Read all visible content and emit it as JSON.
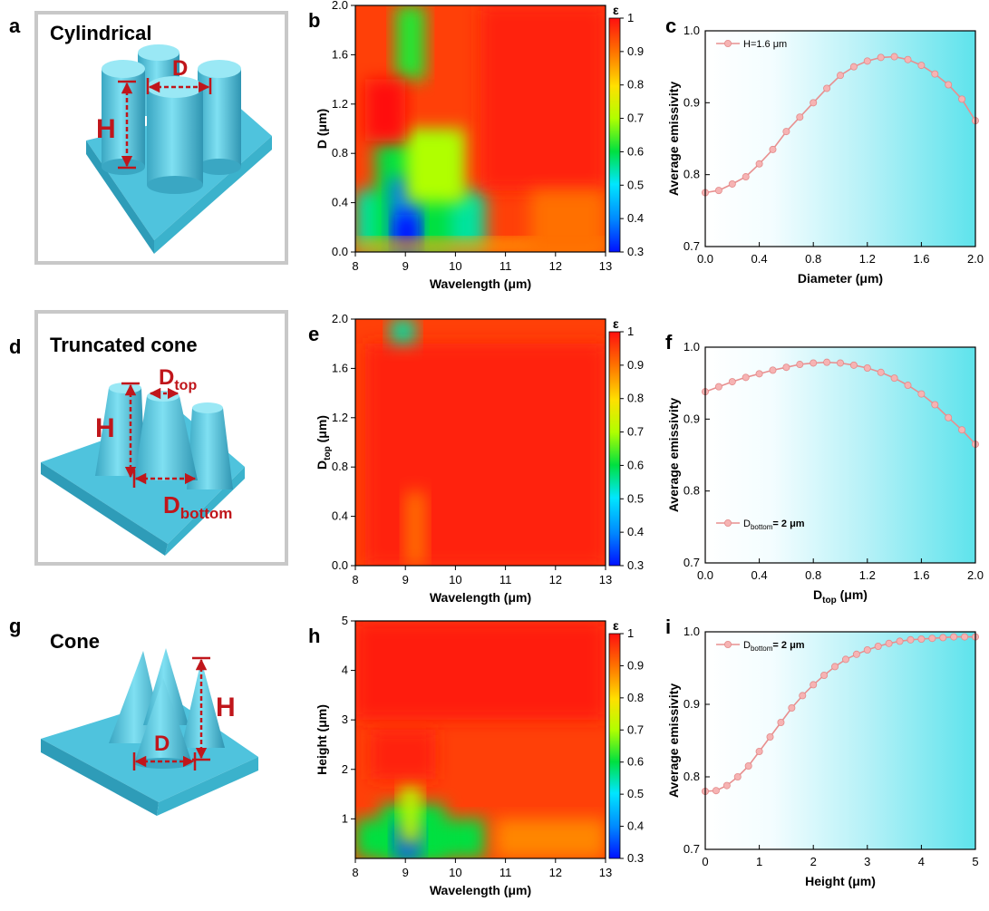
{
  "colors": {
    "accent": "#c0161b",
    "structure": "#4fc3dd",
    "frame": "#c8c8c8",
    "marker": "#f4a7a7",
    "line": "#e88f8f"
  },
  "panels": {
    "a": {
      "letter": "a",
      "title": "Cylindrical",
      "labels": {
        "D": "D",
        "H": "H"
      }
    },
    "d": {
      "letter": "d",
      "title": "Truncated cone",
      "labels": {
        "Dtop_base": "D",
        "Dtop_sub": "top",
        "H": "H",
        "Dbottom_base": "D",
        "Dbottom_sub": "bottom"
      }
    },
    "g": {
      "letter": "g",
      "title": "Cone",
      "labels": {
        "D": "D",
        "H": "H"
      }
    }
  },
  "chart_data": [
    {
      "panel": "b",
      "type": "heatmap",
      "xlabel": "Wavelength (μm)",
      "ylabel_base": "D",
      "ylabel_sub": "",
      "ylabel_tail": " (μm)",
      "xlim": [
        8,
        13
      ],
      "ylim": [
        0,
        2.0
      ],
      "xticks": [
        "8",
        "9",
        "10",
        "11",
        "12",
        "13"
      ],
      "yticks": [
        "0.0",
        "0.4",
        "0.8",
        "1.2",
        "1.6",
        "2.0"
      ],
      "colorbar": {
        "label": "ε",
        "range": [
          0.3,
          1.0
        ],
        "ticks": [
          "1",
          "0.9",
          "0.8",
          "0.7",
          "0.6",
          "0.5",
          "0.4",
          "0.3"
        ]
      }
    },
    {
      "panel": "c",
      "type": "line",
      "xlabel": "Diameter (μm)",
      "ylabel": "Average emissivity",
      "xlim": [
        0,
        2.0
      ],
      "ylim": [
        0.7,
        1.0
      ],
      "xticks": [
        "0.0",
        "0.4",
        "0.8",
        "1.2",
        "1.6",
        "2.0"
      ],
      "yticks": [
        "0.7",
        "0.8",
        "0.9",
        "1.0"
      ],
      "legend": {
        "base": "H=1.6 μm",
        "sub": "",
        "tail": "",
        "position": "top-left"
      },
      "series": [
        {
          "x": [
            0.0,
            0.1,
            0.2,
            0.3,
            0.4,
            0.5,
            0.6,
            0.7,
            0.8,
            0.9,
            1.0,
            1.1,
            1.2,
            1.3,
            1.4,
            1.5,
            1.6,
            1.7,
            1.8,
            1.9,
            2.0
          ],
          "y": [
            0.775,
            0.778,
            0.787,
            0.797,
            0.815,
            0.835,
            0.86,
            0.88,
            0.9,
            0.92,
            0.938,
            0.95,
            0.958,
            0.963,
            0.964,
            0.96,
            0.952,
            0.94,
            0.925,
            0.905,
            0.875
          ]
        }
      ]
    },
    {
      "panel": "e",
      "type": "heatmap",
      "xlabel": "Wavelength (μm)",
      "ylabel_base": "D",
      "ylabel_sub": "top",
      "ylabel_tail": " (μm)",
      "xlim": [
        8,
        13
      ],
      "ylim": [
        0,
        2.0
      ],
      "xticks": [
        "8",
        "9",
        "10",
        "11",
        "12",
        "13"
      ],
      "yticks": [
        "0.0",
        "0.4",
        "0.8",
        "1.2",
        "1.6",
        "2.0"
      ],
      "colorbar": {
        "label": "ε",
        "range": [
          0.3,
          1.0
        ],
        "ticks": [
          "1",
          "0.9",
          "0.8",
          "0.7",
          "0.6",
          "0.5",
          "0.4",
          "0.3"
        ]
      }
    },
    {
      "panel": "f",
      "type": "line",
      "xlabel_base": "D",
      "xlabel_sub": "top",
      "xlabel_tail": " (μm)",
      "ylabel": "Average emissivity",
      "xlim": [
        0,
        2.0
      ],
      "ylim": [
        0.7,
        1.0
      ],
      "xticks": [
        "0.0",
        "0.4",
        "0.8",
        "1.2",
        "1.6",
        "2.0"
      ],
      "yticks": [
        "0.7",
        "0.8",
        "0.9",
        "1.0"
      ],
      "legend": {
        "base": "D",
        "sub": "bottom",
        "tail": "= 2 μm",
        "position": "bottom-left"
      },
      "series": [
        {
          "x": [
            0.0,
            0.1,
            0.2,
            0.3,
            0.4,
            0.5,
            0.6,
            0.7,
            0.8,
            0.9,
            1.0,
            1.1,
            1.2,
            1.3,
            1.4,
            1.5,
            1.6,
            1.7,
            1.8,
            1.9,
            2.0
          ],
          "y": [
            0.938,
            0.945,
            0.952,
            0.958,
            0.963,
            0.968,
            0.972,
            0.976,
            0.978,
            0.979,
            0.978,
            0.975,
            0.971,
            0.965,
            0.957,
            0.947,
            0.935,
            0.92,
            0.902,
            0.885,
            0.865
          ]
        }
      ]
    },
    {
      "panel": "h",
      "type": "heatmap",
      "xlabel": "Wavelength (μm)",
      "ylabel_base": "Height (μm)",
      "ylabel_sub": "",
      "ylabel_tail": "",
      "xlim": [
        8,
        13
      ],
      "ylim": [
        0.2,
        5
      ],
      "xticks": [
        "8",
        "9",
        "10",
        "11",
        "12",
        "13"
      ],
      "yticks": [
        "1",
        "2",
        "3",
        "4",
        "5"
      ],
      "colorbar": {
        "label": "ε",
        "range": [
          0.3,
          1.0
        ],
        "ticks": [
          "1",
          "0.9",
          "0.8",
          "0.7",
          "0.6",
          "0.5",
          "0.4",
          "0.3"
        ]
      }
    },
    {
      "panel": "i",
      "type": "line",
      "xlabel": "Height (μm)",
      "ylabel": "Average emissivity",
      "xlim": [
        0,
        5
      ],
      "ylim": [
        0.7,
        1.0
      ],
      "xticks": [
        "0",
        "1",
        "2",
        "3",
        "4",
        "5"
      ],
      "yticks": [
        "0.7",
        "0.8",
        "0.9",
        "1.0"
      ],
      "legend": {
        "base": "D",
        "sub": "bottom",
        "tail": "= 2 μm",
        "position": "top-left"
      },
      "series": [
        {
          "x": [
            0.0,
            0.2,
            0.4,
            0.6,
            0.8,
            1.0,
            1.2,
            1.4,
            1.6,
            1.8,
            2.0,
            2.2,
            2.4,
            2.6,
            2.8,
            3.0,
            3.2,
            3.4,
            3.6,
            3.8,
            4.0,
            4.2,
            4.4,
            4.6,
            4.8,
            5.0
          ],
          "y": [
            0.78,
            0.781,
            0.788,
            0.8,
            0.815,
            0.835,
            0.855,
            0.875,
            0.895,
            0.912,
            0.927,
            0.94,
            0.952,
            0.962,
            0.969,
            0.975,
            0.98,
            0.984,
            0.987,
            0.989,
            0.99,
            0.991,
            0.992,
            0.993,
            0.993,
            0.993
          ]
        }
      ]
    }
  ]
}
